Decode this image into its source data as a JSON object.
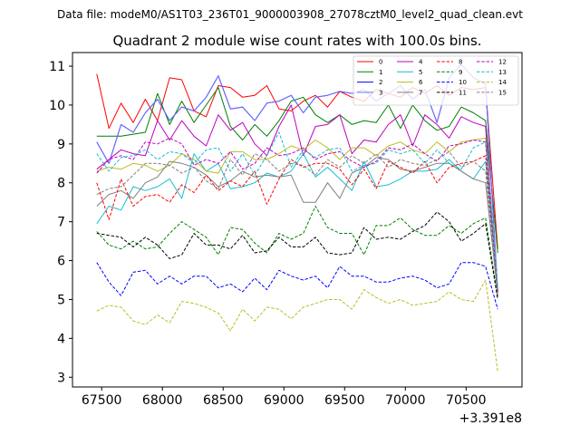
{
  "chart_data": {
    "type": "line",
    "suptitle": "Data file: modeM0/AS1T03_236T01_9000003908_27078cztM0_level2_quad_clean.evt",
    "title": "Quadrant 2 module wise count rates with 100.0s bins.",
    "xlabel": "",
    "ylabel": "",
    "x_offset_label": "+3.391e8",
    "xlim": [
      67260,
      70960
    ],
    "ylim": [
      2.75,
      11.35
    ],
    "xticks": [
      67500,
      68000,
      68500,
      69000,
      69500,
      70000,
      70500
    ],
    "xtick_labels": [
      "67500",
      "68000",
      "68500",
      "69000",
      "69500",
      "70000",
      "70500"
    ],
    "yticks": [
      3,
      4,
      5,
      6,
      7,
      8,
      9,
      10,
      11
    ],
    "ytick_labels": [
      "3",
      "4",
      "5",
      "6",
      "7",
      "8",
      "9",
      "10",
      "11"
    ],
    "legend_position": "top-right",
    "x": [
      67460,
      67560,
      67660,
      67760,
      67860,
      67960,
      68060,
      68160,
      68260,
      68360,
      68460,
      68560,
      68660,
      68760,
      68860,
      68960,
      69060,
      69160,
      69260,
      69360,
      69460,
      69560,
      69660,
      69760,
      69860,
      69960,
      70060,
      70160,
      70260,
      70360,
      70460,
      70560,
      70660,
      70760
    ],
    "series": [
      {
        "name": "0",
        "color": "#ff0000",
        "dash": "solid",
        "values": [
          10.8,
          9.4,
          10.05,
          9.55,
          10.15,
          9.6,
          10.7,
          10.65,
          9.85,
          9.7,
          10.5,
          10.45,
          10.2,
          10.25,
          10.5,
          9.9,
          9.85,
          10.1,
          10.25,
          9.95,
          10.35,
          10.2,
          10.1,
          10.4,
          10.3,
          10.2,
          10.45,
          10.3,
          10.5,
          10.25,
          10.45,
          10.4,
          10.45,
          6.3
        ]
      },
      {
        "name": "1",
        "color": "#008000",
        "dash": "solid",
        "values": [
          9.2,
          9.2,
          9.2,
          9.25,
          9.3,
          10.3,
          9.5,
          10.1,
          9.55,
          10.0,
          10.45,
          9.45,
          9.1,
          9.5,
          9.2,
          9.6,
          10.1,
          10.2,
          9.75,
          9.55,
          9.75,
          9.5,
          9.6,
          9.55,
          10.0,
          9.4,
          10.0,
          9.6,
          9.35,
          9.45,
          9.95,
          9.8,
          9.6,
          6.2
        ]
      },
      {
        "name": "2",
        "color": "#0000ff",
        "dash": "solid",
        "values": [
          9.05,
          8.5,
          9.5,
          9.3,
          9.8,
          10.15,
          9.6,
          9.95,
          9.85,
          10.2,
          10.75,
          9.9,
          9.95,
          9.6,
          10.05,
          10.1,
          10.25,
          9.8,
          10.2,
          10.25,
          10.35,
          10.3,
          10.4,
          10.1,
          10.3,
          10.5,
          10.15,
          10.4,
          9.55,
          10.7,
          11.05,
          10.7,
          10.55,
          5.2
        ]
      },
      {
        "name": "3",
        "color": "#6f6fff",
        "dash": "solid",
        "values": [
          9.05,
          8.5,
          9.5,
          9.3,
          9.8,
          10.15,
          9.6,
          9.95,
          9.85,
          10.2,
          10.75,
          9.9,
          9.95,
          9.6,
          10.05,
          10.1,
          10.25,
          9.8,
          10.2,
          10.25,
          10.35,
          10.3,
          10.4,
          10.1,
          10.3,
          10.5,
          10.15,
          10.4,
          9.55,
          10.7,
          11.05,
          10.7,
          10.55,
          5.2
        ]
      },
      {
        "name": "4",
        "color": "#bf00bf",
        "dash": "solid",
        "values": [
          8.35,
          8.6,
          8.85,
          8.75,
          8.7,
          9.6,
          9.1,
          9.6,
          9.2,
          8.95,
          9.75,
          9.35,
          9.55,
          9.0,
          8.7,
          9.45,
          10.0,
          8.7,
          9.45,
          9.5,
          9.75,
          8.75,
          9.1,
          9.05,
          9.5,
          9.75,
          8.95,
          9.75,
          9.5,
          9.15,
          9.7,
          9.55,
          9.45,
          5.1
        ]
      },
      {
        "name": "5",
        "color": "#17becf",
        "dash": "solid",
        "values": [
          6.95,
          7.4,
          7.3,
          7.9,
          7.8,
          7.9,
          8.1,
          7.6,
          8.75,
          8.3,
          8.5,
          7.85,
          7.9,
          8.0,
          8.25,
          8.15,
          8.3,
          8.75,
          8.15,
          8.4,
          8.1,
          7.8,
          8.55,
          7.9,
          7.95,
          8.1,
          8.3,
          8.3,
          8.35,
          8.6,
          8.3,
          8.1,
          8.55,
          5.3
        ]
      },
      {
        "name": "6",
        "color": "#bcbd22",
        "dash": "solid",
        "values": [
          8.3,
          8.4,
          8.35,
          8.5,
          8.45,
          8.3,
          8.45,
          8.75,
          8.6,
          8.3,
          8.25,
          8.8,
          8.8,
          8.6,
          8.6,
          8.75,
          8.95,
          8.85,
          9.1,
          8.9,
          8.6,
          8.9,
          8.9,
          8.7,
          8.95,
          9.05,
          8.85,
          8.75,
          9.05,
          8.8,
          9.05,
          9.1,
          9.15,
          5.3
        ]
      },
      {
        "name": "7",
        "color": "#808080",
        "dash": "solid",
        "values": [
          7.4,
          7.7,
          7.8,
          7.6,
          8.0,
          8.15,
          8.55,
          8.5,
          8.4,
          8.2,
          7.9,
          8.05,
          8.3,
          8.15,
          8.2,
          8.15,
          8.2,
          7.5,
          7.5,
          8.0,
          7.6,
          8.25,
          8.4,
          8.65,
          8.6,
          8.35,
          8.3,
          8.4,
          8.5,
          8.5,
          8.3,
          8.1,
          8.0,
          5.15
        ]
      },
      {
        "name": "8",
        "color": "#ff0000",
        "dash": "dashed",
        "values": [
          8.0,
          7.05,
          8.1,
          7.4,
          7.65,
          7.7,
          7.5,
          7.95,
          7.75,
          8.2,
          7.8,
          8.05,
          7.9,
          8.3,
          7.45,
          8.1,
          8.6,
          8.4,
          8.5,
          8.5,
          8.35,
          7.95,
          8.35,
          7.85,
          8.55,
          8.4,
          8.25,
          8.55,
          8.0,
          8.4,
          8.5,
          8.55,
          8.7,
          5.2
        ]
      },
      {
        "name": "9",
        "color": "#008000",
        "dash": "dashed",
        "values": [
          6.75,
          6.4,
          6.3,
          6.5,
          6.3,
          6.35,
          6.7,
          7.0,
          6.8,
          6.6,
          6.15,
          6.85,
          6.8,
          6.45,
          6.2,
          6.7,
          6.55,
          6.7,
          7.4,
          6.85,
          6.7,
          6.7,
          6.15,
          6.9,
          6.9,
          7.1,
          6.8,
          6.65,
          6.65,
          6.9,
          6.7,
          6.95,
          7.1,
          5.05
        ]
      },
      {
        "name": "10",
        "color": "#0000ff",
        "dash": "dashed",
        "values": [
          5.95,
          5.45,
          5.1,
          5.7,
          5.75,
          5.4,
          5.6,
          5.4,
          5.6,
          5.6,
          5.3,
          5.4,
          5.2,
          5.55,
          5.25,
          5.75,
          5.6,
          5.5,
          5.6,
          5.3,
          5.85,
          5.6,
          5.6,
          5.45,
          5.45,
          5.55,
          5.6,
          5.5,
          5.3,
          5.4,
          5.95,
          5.95,
          5.85,
          4.75
        ]
      },
      {
        "name": "11",
        "color": "#000000",
        "dash": "dashed",
        "values": [
          6.7,
          6.65,
          6.6,
          6.35,
          6.6,
          6.4,
          6.05,
          6.15,
          6.7,
          6.4,
          6.4,
          6.3,
          6.65,
          6.2,
          6.25,
          6.6,
          6.35,
          6.35,
          6.6,
          6.2,
          6.15,
          6.2,
          6.85,
          6.55,
          6.6,
          6.55,
          6.75,
          6.9,
          7.25,
          7.0,
          6.5,
          6.7,
          6.95,
          5.0
        ]
      },
      {
        "name": "12",
        "color": "#bf00bf",
        "dash": "dashed",
        "values": [
          8.25,
          8.6,
          8.7,
          8.6,
          9.05,
          9.0,
          9.15,
          9.0,
          8.45,
          8.6,
          8.5,
          8.8,
          8.35,
          8.5,
          8.9,
          8.7,
          8.75,
          8.9,
          8.6,
          8.75,
          8.8,
          8.55,
          8.4,
          8.55,
          8.9,
          8.85,
          9.0,
          8.75,
          8.55,
          8.95,
          9.0,
          9.1,
          9.05,
          5.2
        ]
      },
      {
        "name": "13",
        "color": "#17becf",
        "dash": "dashed",
        "values": [
          8.75,
          8.3,
          8.65,
          8.7,
          8.85,
          8.6,
          8.8,
          8.75,
          8.5,
          8.85,
          8.9,
          8.3,
          8.75,
          8.2,
          8.7,
          9.3,
          8.4,
          8.85,
          8.65,
          8.85,
          8.9,
          8.3,
          8.45,
          8.5,
          8.85,
          8.75,
          8.85,
          8.5,
          8.85,
          8.5,
          8.35,
          8.9,
          9.05,
          5.3
        ]
      },
      {
        "name": "14",
        "color": "#bcbd22",
        "dash": "dashed",
        "values": [
          4.7,
          4.85,
          4.8,
          4.45,
          4.35,
          4.6,
          4.4,
          4.95,
          4.9,
          4.8,
          4.65,
          4.2,
          4.75,
          4.45,
          4.8,
          4.75,
          4.5,
          4.8,
          4.9,
          5.0,
          5.0,
          4.75,
          5.25,
          5.05,
          4.9,
          5.0,
          4.85,
          4.9,
          4.95,
          5.2,
          5.0,
          4.95,
          5.5,
          3.15
        ]
      },
      {
        "name": "15",
        "color": "#808080",
        "dash": "dashed",
        "values": [
          7.7,
          7.85,
          7.9,
          8.2,
          8.5,
          8.5,
          8.45,
          8.25,
          8.4,
          8.05,
          7.85,
          8.6,
          8.2,
          8.75,
          8.6,
          8.3,
          8.5,
          8.45,
          8.2,
          8.6,
          8.4,
          8.7,
          8.5,
          8.75,
          8.4,
          8.6,
          8.5,
          8.45,
          8.6,
          8.8,
          8.4,
          8.55,
          8.3,
          5.1
        ]
      }
    ]
  }
}
